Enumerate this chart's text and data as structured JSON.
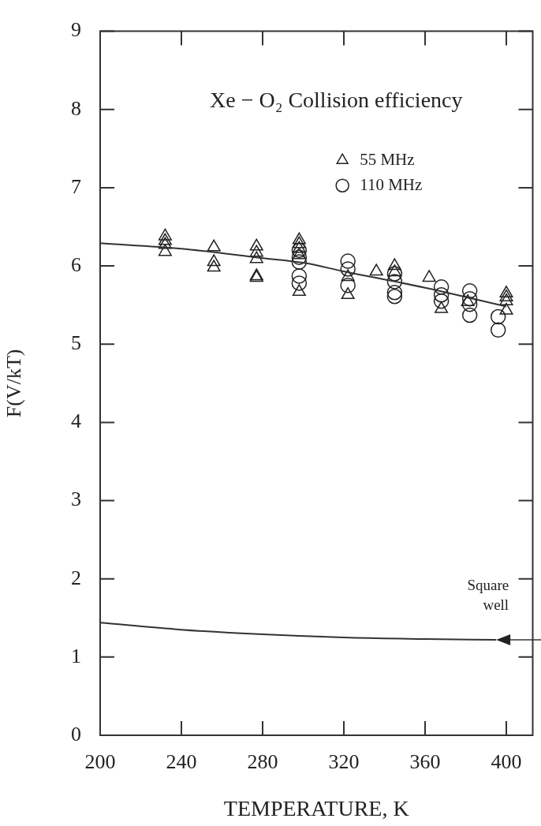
{
  "chart_data": {
    "type": "scatter",
    "title": "Xe − O₂ Collision efficiency",
    "xlabel": "TEMPERATURE, K",
    "ylabel": "F(V/kT)",
    "xlim": [
      200,
      413
    ],
    "xticks": [
      200,
      240,
      280,
      320,
      360,
      400
    ],
    "ylim": [
      0,
      9
    ],
    "yticks": [
      0,
      1,
      2,
      3,
      4,
      5,
      6,
      7,
      8,
      9
    ],
    "grid": false,
    "legend": "top right",
    "series": [
      {
        "name": "55 MHz",
        "color": "#222222",
        "marker": "triangle",
        "x": [
          232,
          232,
          232,
          232,
          256,
          256,
          256,
          277,
          277,
          277,
          277,
          277,
          298,
          298,
          298,
          298,
          298,
          322,
          322,
          336,
          345,
          345,
          362,
          368,
          381,
          400,
          400,
          400,
          400
        ],
        "values": [
          6.38,
          6.32,
          6.27,
          6.18,
          6.24,
          6.05,
          5.98,
          6.25,
          6.17,
          6.09,
          5.87,
          5.85,
          6.33,
          6.28,
          6.22,
          6.14,
          5.67,
          5.86,
          5.63,
          5.93,
          6.0,
          5.92,
          5.85,
          5.45,
          5.54,
          5.65,
          5.6,
          5.55,
          5.43
        ]
      },
      {
        "name": "110 MHz",
        "color": "#222222",
        "marker": "circle",
        "x": [
          298,
          298,
          298,
          298,
          298,
          322,
          322,
          322,
          345,
          345,
          345,
          345,
          368,
          368,
          368,
          382,
          382,
          382,
          382,
          396,
          396
        ],
        "values": [
          6.2,
          6.11,
          6.05,
          5.87,
          5.78,
          6.06,
          5.96,
          5.75,
          5.9,
          5.8,
          5.66,
          5.61,
          5.73,
          5.63,
          5.55,
          5.68,
          5.58,
          5.51,
          5.37,
          5.35,
          5.18
        ]
      },
      {
        "type": "line",
        "color": "#333333",
        "x": [
          200,
          240,
          280,
          300,
          320,
          360,
          400
        ],
        "values": [
          6.29,
          6.22,
          6.1,
          6.04,
          5.93,
          5.72,
          5.48
        ]
      },
      {
        "type": "line",
        "color": "#333333",
        "x": [
          200,
          240,
          280,
          320,
          360,
          395
        ],
        "values": [
          1.44,
          1.35,
          1.29,
          1.25,
          1.23,
          1.22
        ]
      }
    ],
    "annotations": [
      {
        "text": "Square\nwell",
        "x": 395,
        "y": 1.22
      }
    ]
  }
}
